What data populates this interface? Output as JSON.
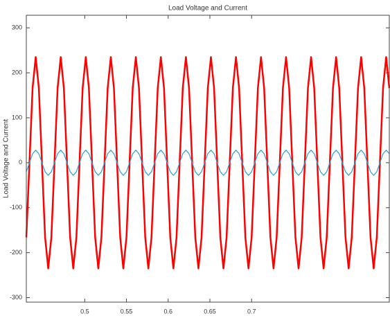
{
  "chart_data": {
    "type": "line",
    "title": "Load Voltage and Current",
    "ylabel": "Load Voltage and Current",
    "x": [
      0.43,
      0.43375,
      0.4375,
      0.44125,
      0.445,
      0.44875,
      0.4525,
      0.45625,
      0.46,
      0.46375,
      0.4675,
      0.47125,
      0.475,
      0.47875,
      0.4825,
      0.48625,
      0.49,
      0.49375,
      0.4975,
      0.50125,
      0.505,
      0.50875,
      0.5125,
      0.51625,
      0.52,
      0.52375,
      0.5275,
      0.53125,
      0.535,
      0.53875,
      0.5425,
      0.54625,
      0.55,
      0.55375,
      0.5575,
      0.56125,
      0.565,
      0.56875,
      0.5725,
      0.57625,
      0.58,
      0.58375,
      0.5875,
      0.59125,
      0.595,
      0.59875,
      0.6025,
      0.60625,
      0.61,
      0.61375,
      0.6175,
      0.62125,
      0.625,
      0.62875,
      0.6325,
      0.63625,
      0.64,
      0.64375,
      0.6475,
      0.65125,
      0.655,
      0.65875,
      0.6625,
      0.66625,
      0.67,
      0.67375,
      0.6775,
      0.68125,
      0.685,
      0.68875,
      0.6925,
      0.69625,
      0.7,
      0.70375,
      0.7075,
      0.71125,
      0.715,
      0.71875,
      0.7225,
      0.72625,
      0.73,
      0.73375,
      0.7375,
      0.74125,
      0.745,
      0.74875,
      0.7525,
      0.75625,
      0.76,
      0.76375,
      0.7675,
      0.77125,
      0.775,
      0.77875,
      0.7825,
      0.78625,
      0.79,
      0.79375,
      0.7975,
      0.80125,
      0.805,
      0.80875,
      0.8125,
      0.81625,
      0.82,
      0.82375,
      0.8275,
      0.83125,
      0.835,
      0.83875,
      0.8425,
      0.84625,
      0.85,
      0.85375,
      0.8575,
      0.86125,
      0.865
    ],
    "series": [
      {
        "color": "#ff0000",
        "values": [
          -166,
          0,
          166,
          235,
          166,
          0,
          -166,
          -235,
          -166,
          0,
          166,
          235,
          166,
          0,
          -166,
          -235,
          -166,
          0,
          166,
          235,
          166,
          0,
          -166,
          -235,
          -166,
          0,
          166,
          235,
          166,
          0,
          -166,
          -235,
          -166,
          0,
          166,
          235,
          166,
          0,
          -166,
          -235,
          -166,
          0,
          166,
          235,
          166,
          0,
          -166,
          -235,
          -166,
          0,
          166,
          235,
          166,
          0,
          -166,
          -235,
          -166,
          0,
          166,
          235,
          166,
          0,
          -166,
          -235,
          -166,
          0,
          166,
          235,
          166,
          0,
          -166,
          -235,
          -166,
          0,
          166,
          235,
          166,
          0,
          -166,
          -235,
          -166,
          0,
          166,
          235,
          166,
          0,
          -166,
          -235,
          -166,
          0,
          166,
          235,
          166,
          0,
          -166,
          -235,
          -166,
          0,
          166,
          235,
          166,
          0,
          -166,
          -235,
          -166,
          0,
          166,
          235,
          166,
          0,
          -166,
          -235,
          -166,
          0,
          166,
          235,
          166
        ]
      },
      {
        "color": "#2a9fd8",
        "values": [
          -20,
          0,
          20,
          28,
          20,
          0,
          -20,
          -28,
          -20,
          0,
          20,
          28,
          20,
          0,
          -20,
          -28,
          -20,
          0,
          20,
          28,
          20,
          0,
          -20,
          -28,
          -20,
          0,
          20,
          28,
          20,
          0,
          -20,
          -28,
          -20,
          0,
          20,
          28,
          20,
          0,
          -20,
          -28,
          -20,
          0,
          20,
          28,
          20,
          0,
          -20,
          -28,
          -20,
          0,
          20,
          28,
          20,
          0,
          -20,
          -28,
          -20,
          0,
          20,
          28,
          20,
          0,
          -20,
          -28,
          -20,
          0,
          20,
          28,
          20,
          0,
          -20,
          -28,
          -20,
          0,
          20,
          28,
          20,
          0,
          -20,
          -28,
          -20,
          0,
          20,
          28,
          20,
          0,
          -20,
          -28,
          -20,
          0,
          20,
          28,
          20,
          0,
          -20,
          -28,
          -20,
          0,
          20,
          28,
          20,
          0,
          -20,
          -28,
          -20,
          0,
          20,
          28,
          20,
          0,
          -20,
          -28,
          -20,
          0,
          20,
          28,
          20
        ]
      }
    ],
    "xlim": [
      0.43,
      0.865
    ],
    "xticks": [
      0.5,
      0.55,
      0.6,
      0.65,
      0.7
    ],
    "ylim": [
      -310,
      328
    ],
    "yticks": [
      -300,
      -200,
      -100,
      0,
      100,
      200,
      300
    ],
    "grid": false
  }
}
